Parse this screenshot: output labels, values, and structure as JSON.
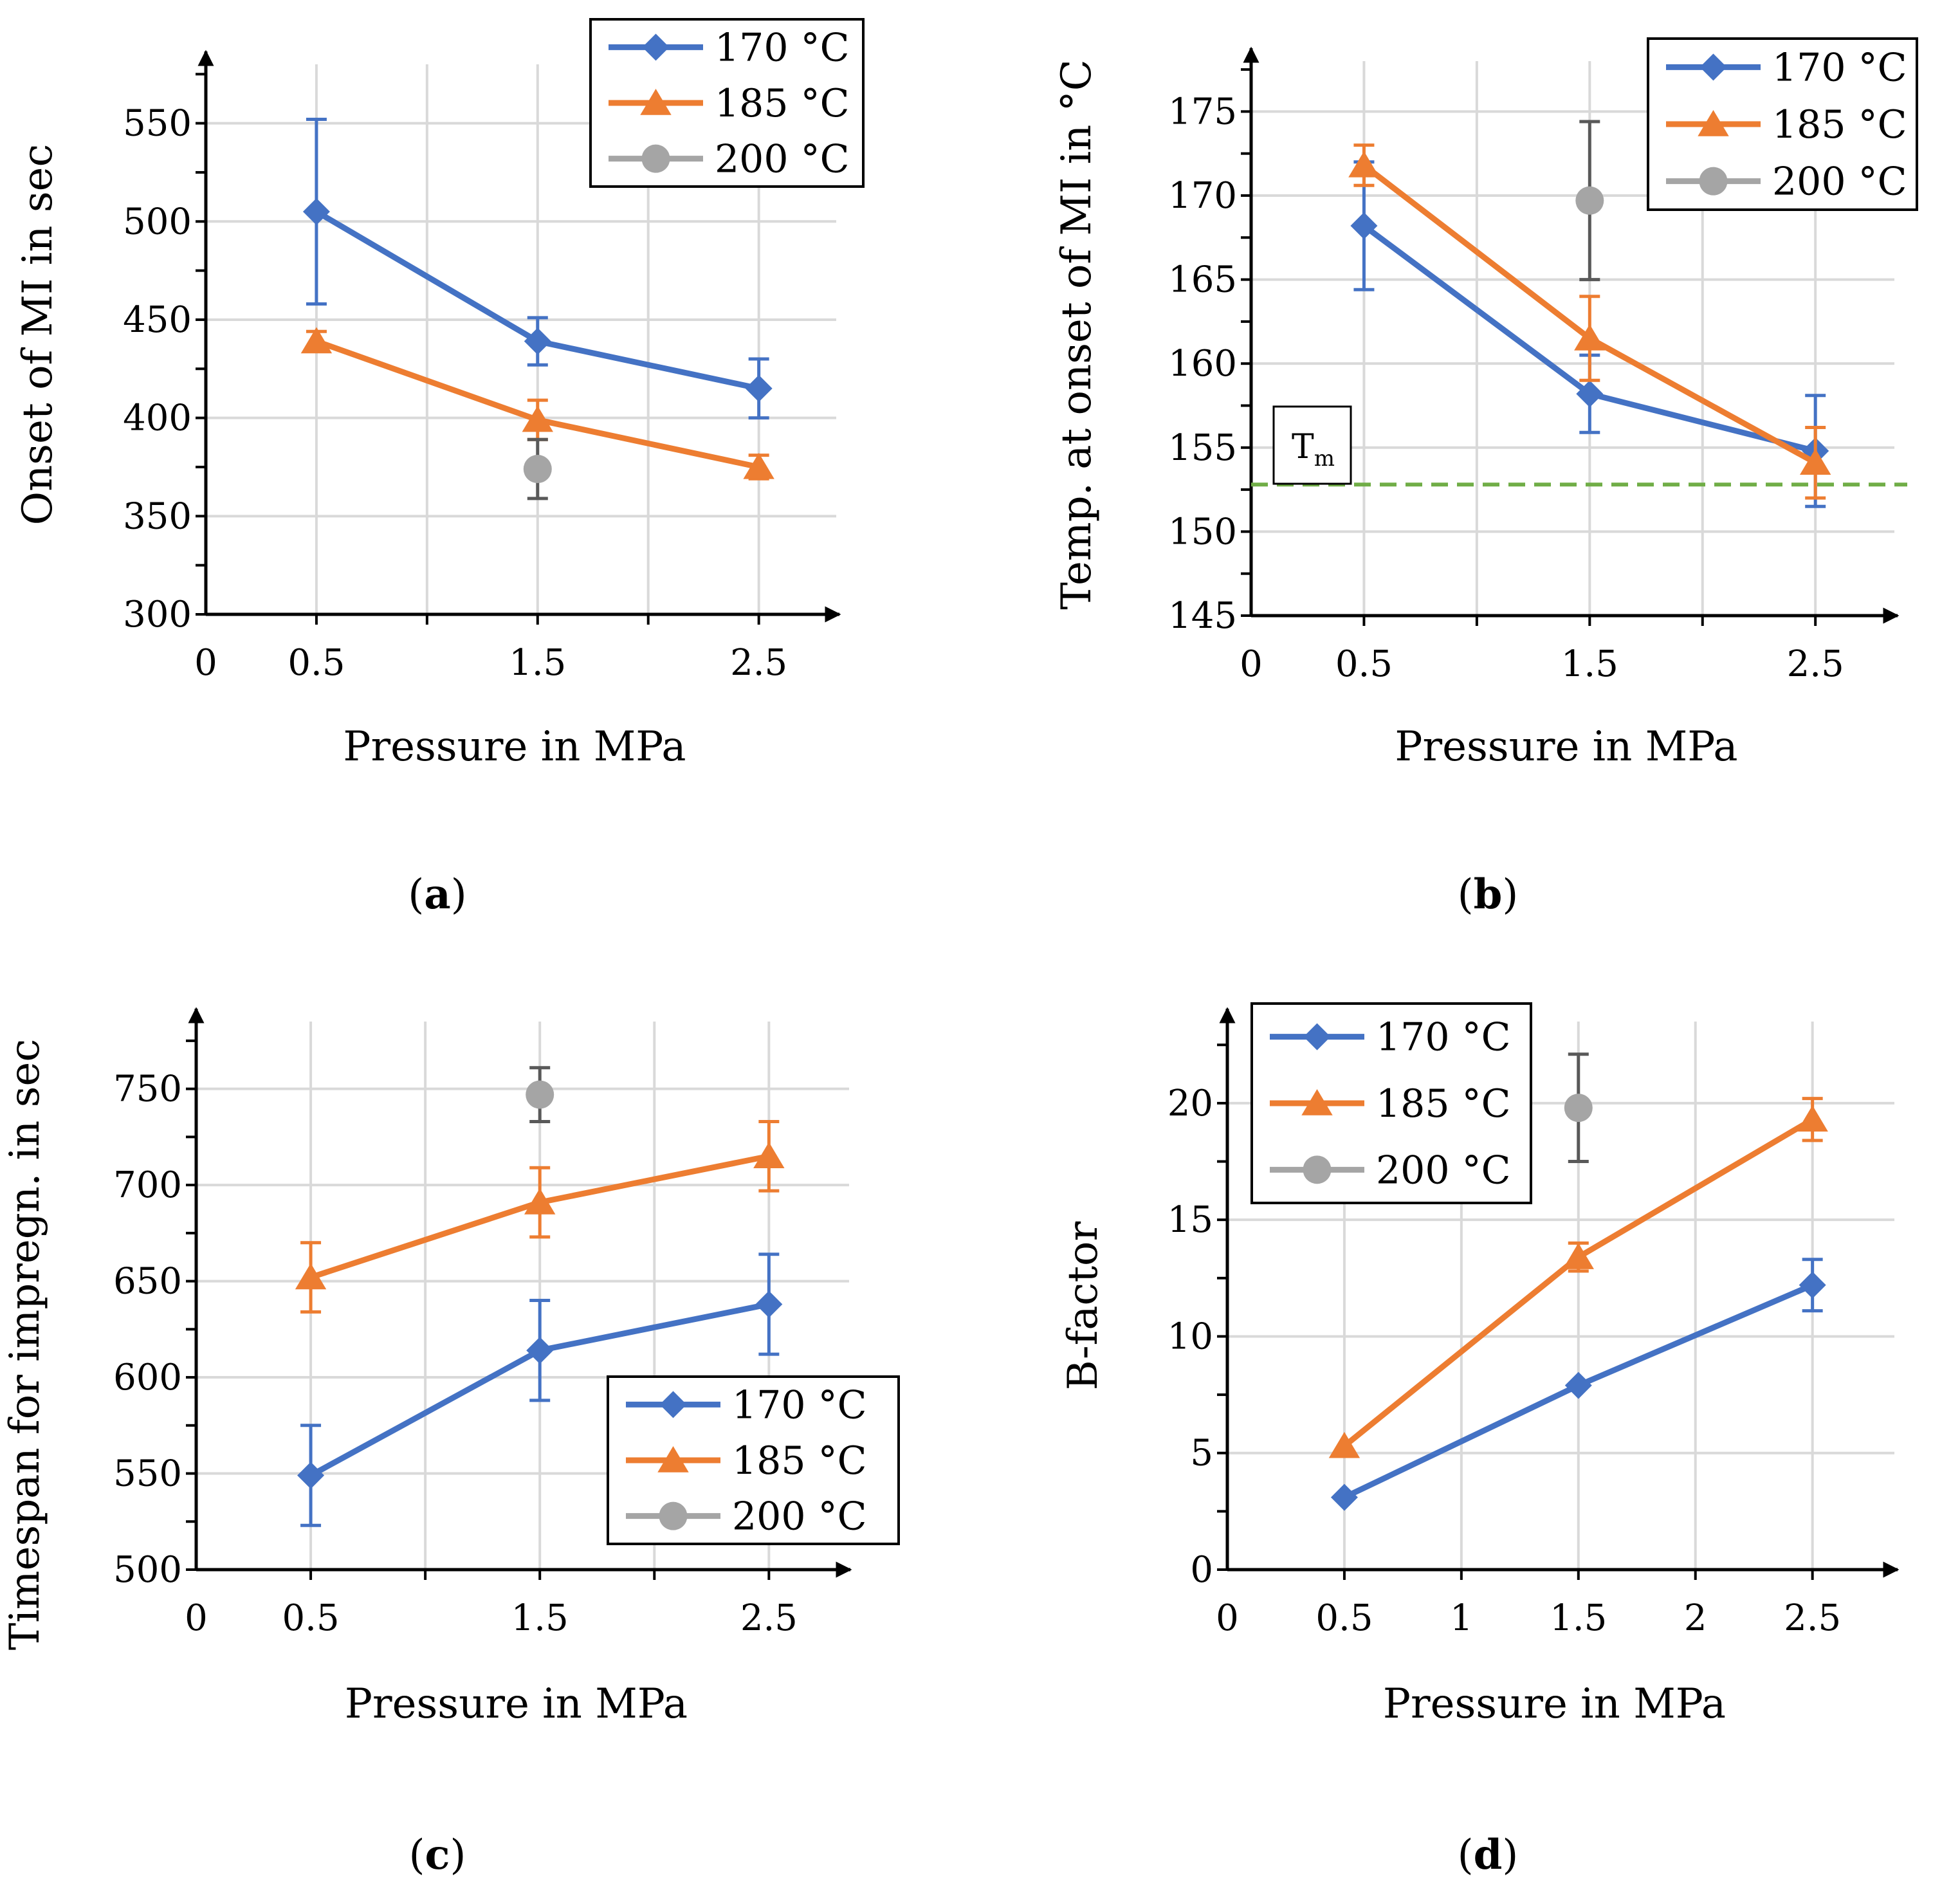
{
  "colors": {
    "s170": "#4472C4",
    "s185": "#ED7D31",
    "s200": "#A5A5A5",
    "err200": "#595959",
    "grid": "#D9D9D9",
    "tm_line": "#70AD47"
  },
  "legend_labels": [
    "170 °C",
    "185 °C",
    "200 °C"
  ],
  "chart_data": [
    {
      "id": "a",
      "type": "line",
      "caption": {
        "open": "(",
        "letter": "a",
        "close": ")"
      },
      "xlabel": "Pressure in MPa",
      "ylabel": "Onset of MI in sec",
      "xlim": [
        0,
        2.85
      ],
      "xticks": [
        "0",
        "0.5",
        "1.5",
        "2.5"
      ],
      "ylim": [
        300,
        580
      ],
      "yticks": [
        "300",
        "350",
        "400",
        "450",
        "500",
        "550"
      ],
      "series": [
        {
          "name": "170 °C",
          "x": [
            0.5,
            1.5,
            2.5
          ],
          "values": [
            505,
            439,
            415
          ],
          "err": [
            47,
            12,
            15
          ]
        },
        {
          "name": "185 °C",
          "x": [
            0.5,
            1.5,
            2.5
          ],
          "values": [
            439,
            399,
            375
          ],
          "err": [
            5,
            10,
            6
          ]
        },
        {
          "name": "200 °C",
          "x": [
            1.5
          ],
          "values": [
            374
          ],
          "err": [
            15
          ]
        }
      ],
      "legend": "top-right"
    },
    {
      "id": "b",
      "type": "line",
      "caption": {
        "open": "(",
        "letter": "b",
        "close": ")"
      },
      "xlabel": "Pressure in MPa",
      "ylabel": "Temp. at onset of MI in °C",
      "xlim": [
        0,
        2.85
      ],
      "xticks": [
        "0",
        "0.5",
        "1.5",
        "2.5"
      ],
      "ylim": [
        145,
        178
      ],
      "yticks": [
        "145",
        "150",
        "155",
        "160",
        "165",
        "170",
        "175"
      ],
      "series": [
        {
          "name": "170 °C",
          "x": [
            0.5,
            1.5,
            2.5
          ],
          "values": [
            168.2,
            158.2,
            154.8
          ],
          "err": [
            3.8,
            2.3,
            3.3
          ]
        },
        {
          "name": "185 °C",
          "x": [
            0.5,
            1.5,
            2.5
          ],
          "values": [
            171.8,
            161.5,
            154.1
          ],
          "err": [
            1.2,
            2.5,
            2.1
          ]
        },
        {
          "name": "200 °C",
          "x": [
            1.5
          ],
          "values": [
            169.7
          ],
          "err": [
            4.7
          ]
        }
      ],
      "reference_line": {
        "label": "T",
        "label_sub": "m",
        "value": 152.8
      },
      "legend": "top-right"
    },
    {
      "id": "c",
      "type": "line",
      "caption": {
        "open": "(",
        "letter": "c",
        "close": ")"
      },
      "xlabel": "Pressure in MPa",
      "ylabel": "Timespan for impregn. in sec",
      "xlim": [
        0,
        2.85
      ],
      "xticks": [
        "0",
        "0.5",
        "1.5",
        "2.5"
      ],
      "ylim": [
        500,
        785
      ],
      "yticks": [
        "500",
        "550",
        "600",
        "650",
        "700",
        "750"
      ],
      "series": [
        {
          "name": "170 °C",
          "x": [
            0.5,
            1.5,
            2.5
          ],
          "values": [
            549,
            614,
            638
          ],
          "err": [
            26,
            26,
            26
          ]
        },
        {
          "name": "185 °C",
          "x": [
            0.5,
            1.5,
            2.5
          ],
          "values": [
            652,
            691,
            715
          ],
          "err": [
            18,
            18,
            18
          ]
        },
        {
          "name": "200 °C",
          "x": [
            1.5
          ],
          "values": [
            747
          ],
          "err": [
            14
          ]
        }
      ],
      "legend": "bottom-right"
    },
    {
      "id": "d",
      "type": "line",
      "caption": {
        "open": "(",
        "letter": "d",
        "close": ")"
      },
      "xlabel": "Pressure in MPa",
      "ylabel": "B-factor",
      "xlim": [
        0,
        2.85
      ],
      "xticks": [
        "0",
        "0.5",
        "1",
        "1.5",
        "2",
        "2.5"
      ],
      "ylim": [
        0,
        23.5
      ],
      "yticks": [
        "0",
        "5",
        "10",
        "15",
        "20"
      ],
      "series": [
        {
          "name": "170 °C",
          "x": [
            0.5,
            1.5,
            2.5
          ],
          "values": [
            3.1,
            7.9,
            12.2
          ],
          "err": [
            0,
            0,
            1.1
          ]
        },
        {
          "name": "185 °C",
          "x": [
            0.5,
            1.5,
            2.5
          ],
          "values": [
            5.3,
            13.4,
            19.3
          ],
          "err": [
            0,
            0.6,
            0.9
          ]
        },
        {
          "name": "200 °C",
          "x": [
            1.5
          ],
          "values": [
            19.8
          ],
          "err": [
            2.3
          ]
        }
      ],
      "legend": "top-left"
    }
  ]
}
